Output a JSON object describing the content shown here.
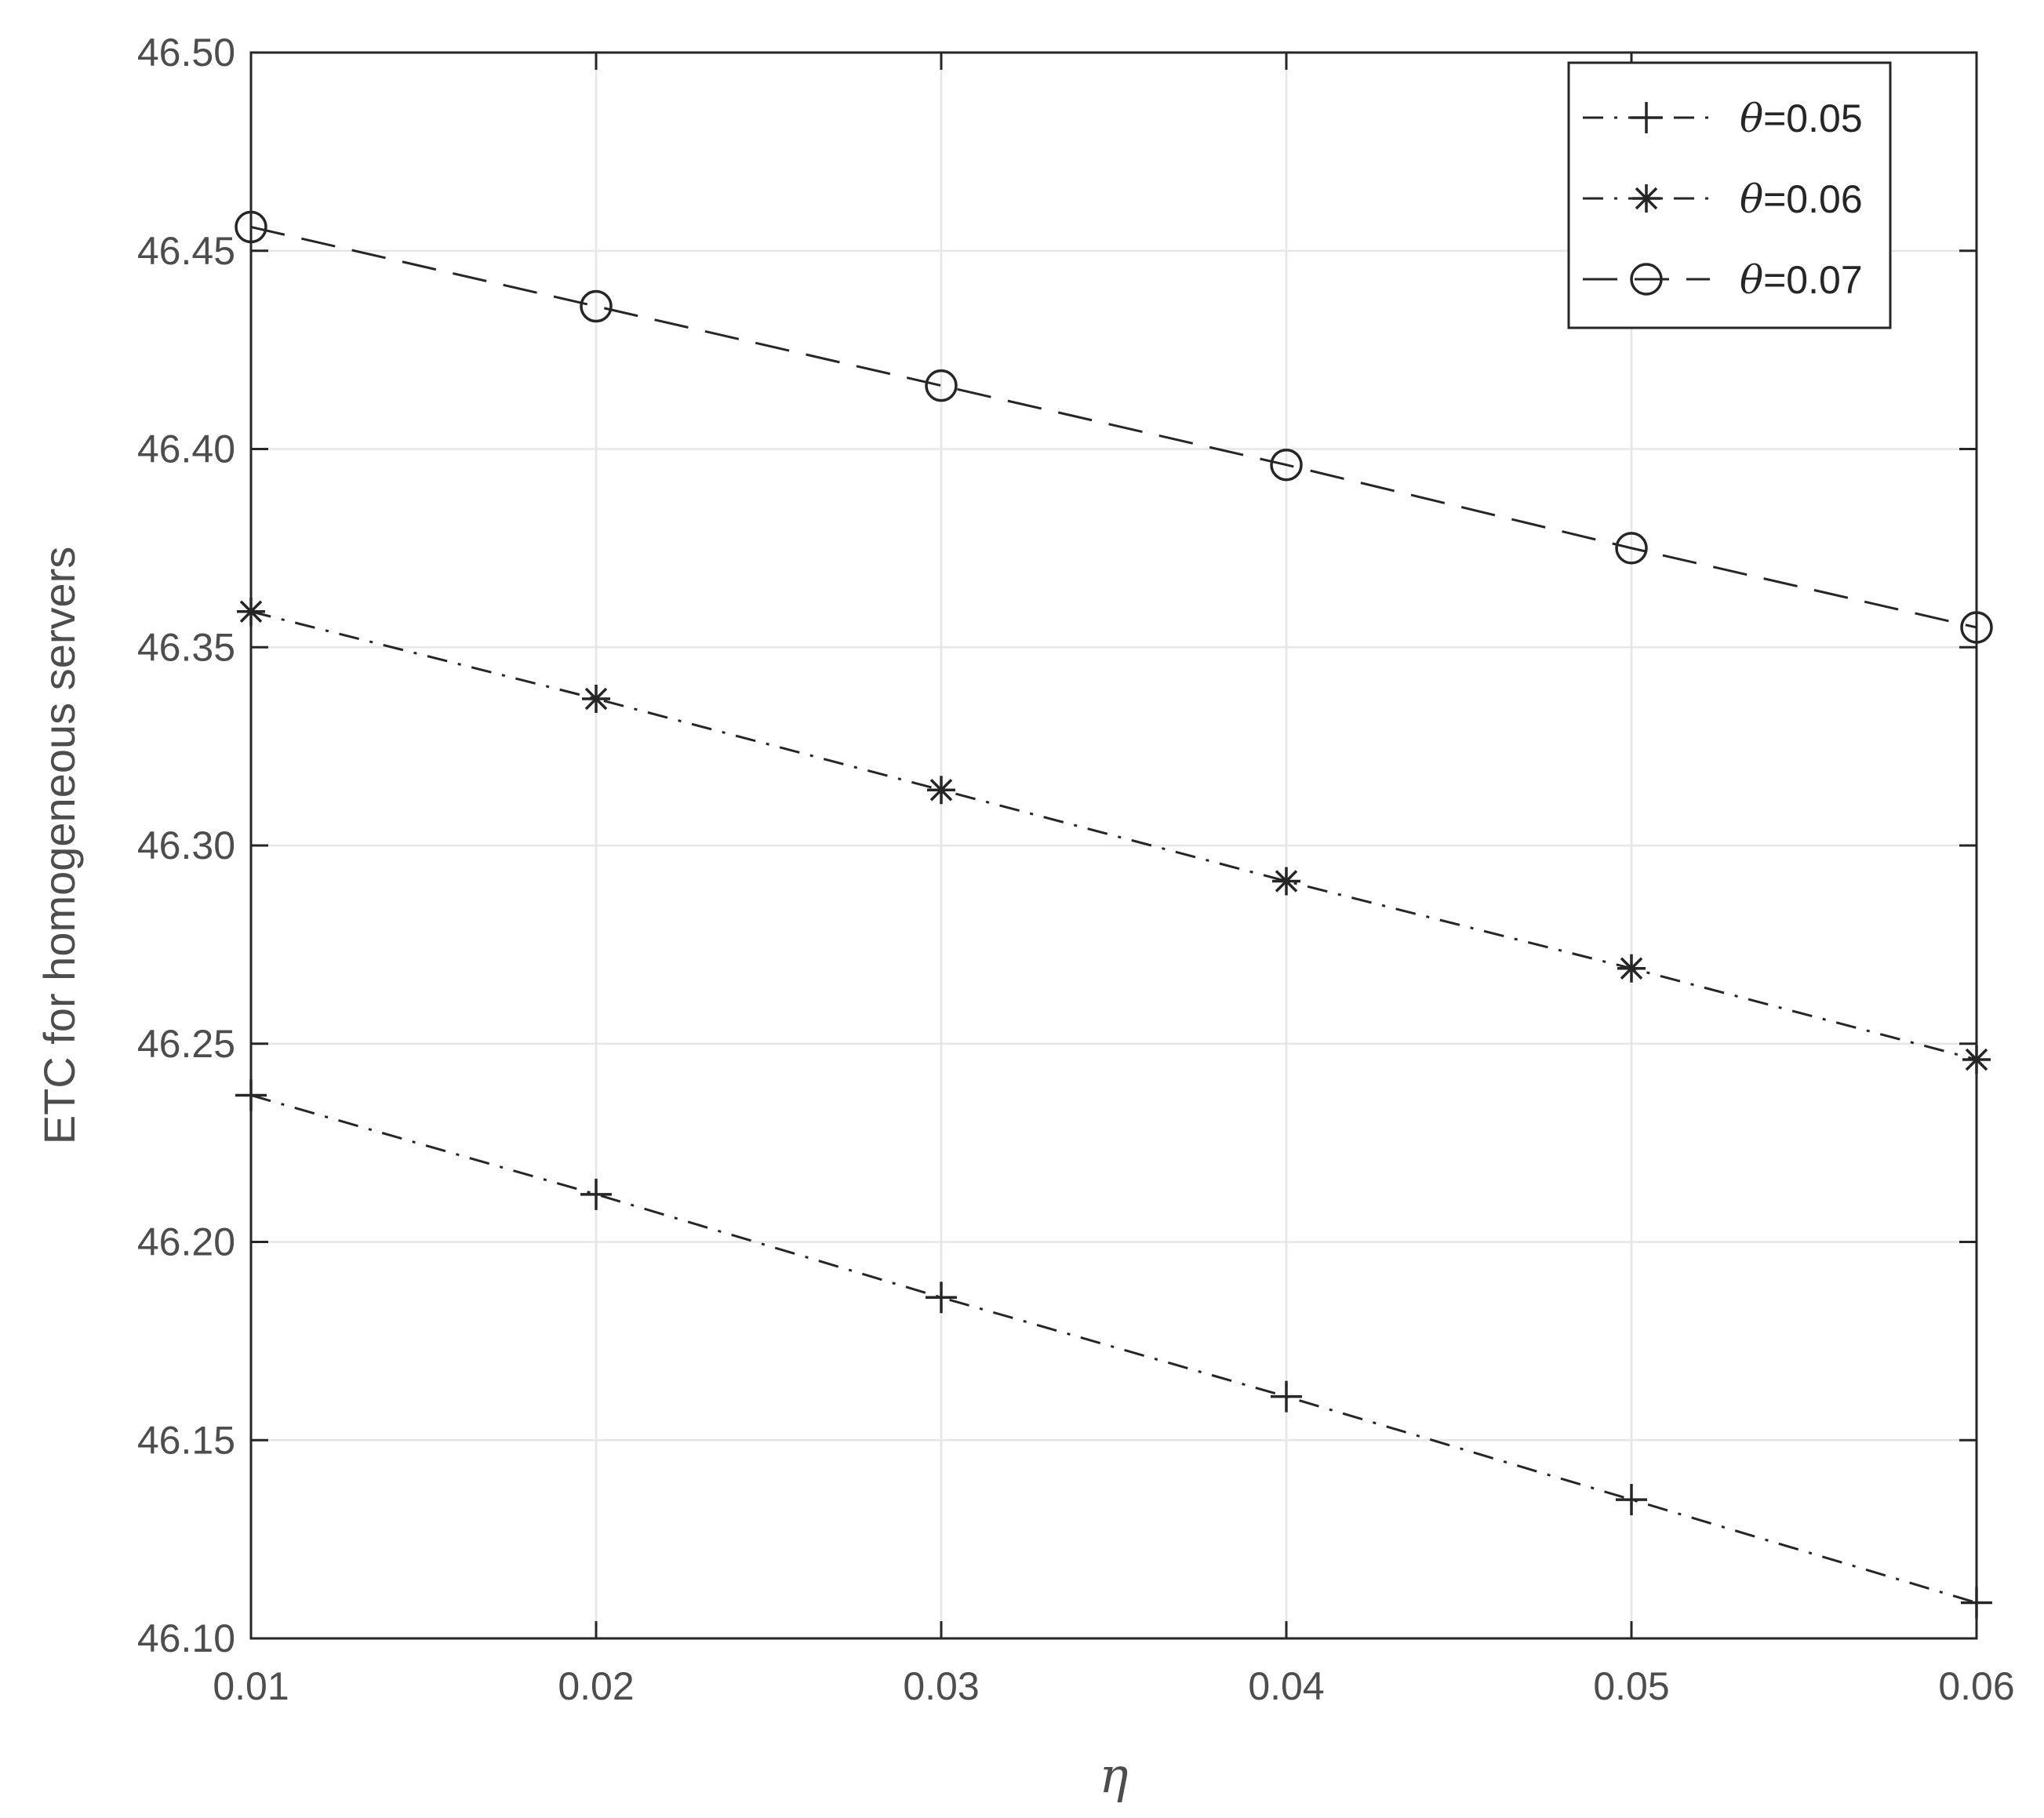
{
  "chart_data": {
    "type": "line",
    "title": "",
    "xlabel": "η",
    "ylabel": "ETC for homogeneous servers",
    "xlim": [
      0.01,
      0.06
    ],
    "ylim": [
      46.1,
      46.5
    ],
    "xticks": [
      "0.01",
      "0.02",
      "0.03",
      "0.04",
      "0.05",
      "0.06"
    ],
    "yticks": [
      "46.10",
      "46.15",
      "46.20",
      "46.25",
      "46.30",
      "46.35",
      "46.40",
      "46.45",
      "46.50"
    ],
    "grid": true,
    "legend_position": "top-right",
    "x": [
      0.01,
      0.02,
      0.03,
      0.04,
      0.05,
      0.06
    ],
    "series": [
      {
        "name": "θ=0.05",
        "name_symbol": "θ",
        "name_value": "=0.05",
        "marker": "plus",
        "line_style": "dash-dot",
        "values": [
          46.237,
          46.212,
          46.186,
          46.161,
          46.135,
          46.109
        ]
      },
      {
        "name": "θ=0.06",
        "name_symbol": "θ",
        "name_value": "=0.06",
        "marker": "asterisk",
        "line_style": "dash-dot",
        "values": [
          46.359,
          46.337,
          46.314,
          46.291,
          46.269,
          46.246
        ]
      },
      {
        "name": "θ=0.07",
        "name_symbol": "θ",
        "name_value": "=0.07",
        "marker": "circle",
        "line_style": "dashed",
        "values": [
          46.456,
          46.436,
          46.416,
          46.396,
          46.375,
          46.355
        ]
      }
    ],
    "colors": {
      "line": "#262626",
      "axis": "#262626",
      "grid": "#e6e6e6",
      "tick_text": "#4d4d4d"
    }
  }
}
